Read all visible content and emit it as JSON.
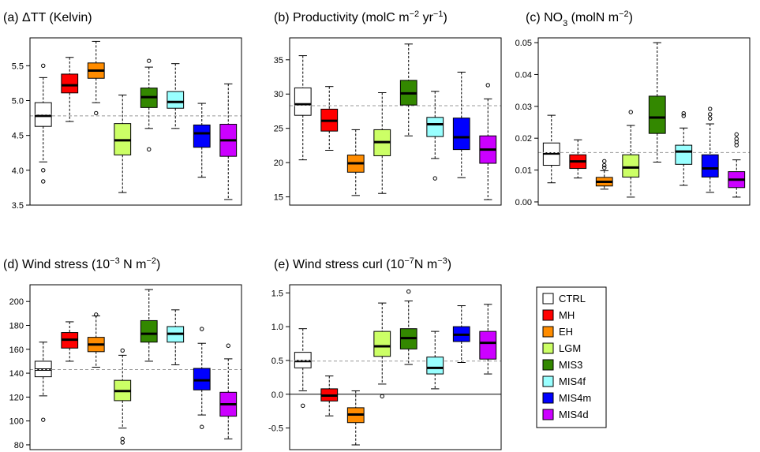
{
  "series_colors": {
    "CTRL": "#FFFFFF",
    "MH": "#FF0000",
    "EH": "#FF8C00",
    "LGM": "#CCFF66",
    "MIS3": "#338800",
    "MIS4f": "#99FFFF",
    "MIS4m": "#0000FF",
    "MIS4d": "#CC00FF"
  },
  "legend": {
    "position": "right",
    "entries": [
      "CTRL",
      "MH",
      "EH",
      "LGM",
      "MIS3",
      "MIS4f",
      "MIS4m",
      "MIS4d"
    ]
  },
  "chart_data": [
    {
      "id": "a",
      "type": "boxplot",
      "title": {
        "label": "(a) ",
        "text": "ΔTT (Kelvin)"
      },
      "ylim": [
        3.5,
        5.9
      ],
      "yticks": [
        3.5,
        4.0,
        4.5,
        5.0,
        5.5
      ],
      "ytick_labels": [
        "3.5",
        "4.0",
        "4.5",
        "5.0",
        "5.5"
      ],
      "reference_line": 4.78,
      "zero_line": null,
      "categories": [
        "CTRL",
        "MH",
        "EH",
        "LGM",
        "MIS3",
        "MIS4f",
        "MIS4m",
        "MIS4d"
      ],
      "boxes": [
        {
          "min": 4.12,
          "q1": 4.63,
          "median": 4.78,
          "mean": 4.8,
          "q3": 4.97,
          "max": 5.33,
          "outliers": [
            5.5,
            4.0,
            3.84
          ]
        },
        {
          "min": 4.7,
          "q1": 5.11,
          "median": 5.22,
          "mean": null,
          "q3": 5.38,
          "max": 5.62,
          "outliers": []
        },
        {
          "min": 4.97,
          "q1": 5.32,
          "median": 5.43,
          "mean": null,
          "q3": 5.54,
          "max": 5.85,
          "outliers": [
            4.82
          ]
        },
        {
          "min": 3.68,
          "q1": 4.22,
          "median": 4.43,
          "mean": null,
          "q3": 4.67,
          "max": 5.08,
          "outliers": []
        },
        {
          "min": 4.6,
          "q1": 4.9,
          "median": 5.05,
          "mean": null,
          "q3": 5.18,
          "max": 5.48,
          "outliers": [
            5.57,
            4.3
          ]
        },
        {
          "min": 4.6,
          "q1": 4.89,
          "median": 4.98,
          "mean": null,
          "q3": 5.13,
          "max": 5.53,
          "outliers": []
        },
        {
          "min": 3.9,
          "q1": 4.33,
          "median": 4.53,
          "mean": null,
          "q3": 4.65,
          "max": 4.96,
          "outliers": []
        },
        {
          "min": 3.58,
          "q1": 4.2,
          "median": 4.43,
          "mean": null,
          "q3": 4.66,
          "max": 5.24,
          "outliers": []
        }
      ]
    },
    {
      "id": "b",
      "type": "boxplot",
      "title": {
        "label": "(b) ",
        "text": "Productivity (molC m",
        "sup1": "−2",
        "mid": " yr",
        "sup2": "−1",
        "end": ")"
      },
      "ylim": [
        13.8,
        38.2
      ],
      "yticks": [
        15,
        20,
        25,
        30,
        35
      ],
      "ytick_labels": [
        "15",
        "20",
        "25",
        "30",
        "35"
      ],
      "reference_line": 28.3,
      "zero_line": null,
      "categories": [
        "CTRL",
        "MH",
        "EH",
        "LGM",
        "MIS3",
        "MIS4f",
        "MIS4m",
        "MIS4d"
      ],
      "boxes": [
        {
          "min": 20.4,
          "q1": 26.9,
          "median": 28.5,
          "mean": 28.3,
          "q3": 30.9,
          "max": 35.6,
          "outliers": []
        },
        {
          "min": 21.8,
          "q1": 24.6,
          "median": 26.1,
          "mean": null,
          "q3": 27.8,
          "max": 31.1,
          "outliers": []
        },
        {
          "min": 15.2,
          "q1": 18.6,
          "median": 19.9,
          "mean": null,
          "q3": 21.1,
          "max": 24.8,
          "outliers": []
        },
        {
          "min": 15.5,
          "q1": 21.0,
          "median": 23.0,
          "mean": null,
          "q3": 24.8,
          "max": 30.2,
          "outliers": []
        },
        {
          "min": 23.9,
          "q1": 28.4,
          "median": 30.1,
          "mean": null,
          "q3": 32.0,
          "max": 37.3,
          "outliers": []
        },
        {
          "min": 20.6,
          "q1": 23.8,
          "median": 25.6,
          "mean": null,
          "q3": 26.6,
          "max": 30.4,
          "outliers": [
            17.7
          ]
        },
        {
          "min": 17.8,
          "q1": 21.9,
          "median": 23.7,
          "mean": null,
          "q3": 26.5,
          "max": 33.2,
          "outliers": []
        },
        {
          "min": 14.6,
          "q1": 19.9,
          "median": 21.9,
          "mean": null,
          "q3": 23.9,
          "max": 29.3,
          "outliers": [
            31.3
          ]
        }
      ]
    },
    {
      "id": "c",
      "type": "boxplot",
      "title": {
        "label": "(c) ",
        "text": "NO",
        "sub": "3",
        "end": " (molN m",
        "sup1": "−2",
        "end2": ")"
      },
      "ylim": [
        -0.001,
        0.0515
      ],
      "yticks": [
        0.0,
        0.01,
        0.02,
        0.03,
        0.04,
        0.05
      ],
      "ytick_labels": [
        "0.00",
        "0.01",
        "0.02",
        "0.03",
        "0.04",
        "0.05"
      ],
      "reference_line": 0.0155,
      "zero_line": null,
      "categories": [
        "CTRL",
        "MH",
        "EH",
        "LGM",
        "MIS3",
        "MIS4f",
        "MIS4m",
        "MIS4d"
      ],
      "boxes": [
        {
          "min": 0.006,
          "q1": 0.0115,
          "median": 0.0152,
          "mean": 0.0155,
          "q3": 0.0185,
          "max": 0.0272,
          "outliers": []
        },
        {
          "min": 0.0075,
          "q1": 0.0105,
          "median": 0.0127,
          "mean": null,
          "q3": 0.0148,
          "max": 0.0195,
          "outliers": []
        },
        {
          "min": 0.004,
          "q1": 0.005,
          "median": 0.0063,
          "mean": null,
          "q3": 0.0077,
          "max": 0.0098,
          "outliers": [
            0.0107,
            0.0115,
            0.0128
          ]
        },
        {
          "min": 0.0015,
          "q1": 0.0078,
          "median": 0.0108,
          "mean": null,
          "q3": 0.0148,
          "max": 0.024,
          "outliers": [
            0.0282
          ]
        },
        {
          "min": 0.0125,
          "q1": 0.0215,
          "median": 0.0265,
          "mean": null,
          "q3": 0.0332,
          "max": 0.05,
          "outliers": []
        },
        {
          "min": 0.0052,
          "q1": 0.0118,
          "median": 0.0158,
          "mean": null,
          "q3": 0.0178,
          "max": 0.0232,
          "outliers": [
            0.027,
            0.0278
          ]
        },
        {
          "min": 0.003,
          "q1": 0.0078,
          "median": 0.0105,
          "mean": null,
          "q3": 0.0148,
          "max": 0.0245,
          "outliers": [
            0.0262,
            0.0275,
            0.0292
          ]
        },
        {
          "min": 0.0015,
          "q1": 0.0045,
          "median": 0.007,
          "mean": null,
          "q3": 0.0095,
          "max": 0.0132,
          "outliers": [
            0.0178,
            0.0188,
            0.0198,
            0.0212
          ]
        }
      ]
    },
    {
      "id": "d",
      "type": "boxplot",
      "title": {
        "label": "(d) ",
        "text": "Wind stress (10",
        "sup1": "−3",
        "mid": " N m",
        "sup2": "−2",
        "end": ")"
      },
      "ylim": [
        76,
        214
      ],
      "yticks": [
        80,
        100,
        120,
        140,
        160,
        180,
        200
      ],
      "ytick_labels": [
        "80",
        "100",
        "120",
        "140",
        "160",
        "180",
        "200"
      ],
      "reference_line": 143,
      "zero_line": null,
      "categories": [
        "CTRL",
        "MH",
        "EH",
        "LGM",
        "MIS3",
        "MIS4f",
        "MIS4m",
        "MIS4d"
      ],
      "boxes": [
        {
          "min": 121,
          "q1": 137,
          "median": 143,
          "mean": 143,
          "q3": 150,
          "max": 166,
          "outliers": [
            101
          ]
        },
        {
          "min": 150,
          "q1": 161,
          "median": 168,
          "mean": null,
          "q3": 174,
          "max": 183,
          "outliers": []
        },
        {
          "min": 145,
          "q1": 158,
          "median": 164,
          "mean": null,
          "q3": 170,
          "max": 188,
          "outliers": [
            189
          ]
        },
        {
          "min": 94,
          "q1": 117,
          "median": 125,
          "mean": null,
          "q3": 134,
          "max": 155,
          "outliers": [
            159,
            85,
            82
          ]
        },
        {
          "min": 150,
          "q1": 166,
          "median": 173,
          "mean": null,
          "q3": 184,
          "max": 210,
          "outliers": []
        },
        {
          "min": 147,
          "q1": 166,
          "median": 173,
          "mean": null,
          "q3": 179,
          "max": 193,
          "outliers": []
        },
        {
          "min": 105,
          "q1": 126,
          "median": 134,
          "mean": null,
          "q3": 144,
          "max": 165,
          "outliers": [
            177,
            95
          ]
        },
        {
          "min": 85,
          "q1": 104,
          "median": 114,
          "mean": null,
          "q3": 124,
          "max": 152,
          "outliers": [
            163
          ]
        }
      ]
    },
    {
      "id": "e",
      "type": "boxplot",
      "title": {
        "label": "(e) ",
        "text": "Wind stress curl (10",
        "sup1": "−7",
        "mid": "N m",
        "sup2": "−3",
        "end": ")"
      },
      "ylim": [
        -0.82,
        1.62
      ],
      "yticks": [
        -0.5,
        0.0,
        0.5,
        1.0,
        1.5
      ],
      "ytick_labels": [
        "-0.5",
        "0.0",
        "0.5",
        "1.0",
        "1.5"
      ],
      "reference_line": 0.49,
      "zero_line": 0.0,
      "categories": [
        "CTRL",
        "MH",
        "EH",
        "LGM",
        "MIS3",
        "MIS4f",
        "MIS4m",
        "MIS4d"
      ],
      "boxes": [
        {
          "min": 0.05,
          "q1": 0.39,
          "median": 0.49,
          "mean": 0.5,
          "q3": 0.62,
          "max": 0.97,
          "outliers": [
            -0.17
          ]
        },
        {
          "min": -0.32,
          "q1": -0.1,
          "median": -0.02,
          "mean": null,
          "q3": 0.08,
          "max": 0.27,
          "outliers": []
        },
        {
          "min": -0.75,
          "q1": -0.42,
          "median": -0.3,
          "mean": null,
          "q3": -0.2,
          "max": 0.05,
          "outliers": []
        },
        {
          "min": 0.15,
          "q1": 0.56,
          "median": 0.71,
          "mean": null,
          "q3": 0.93,
          "max": 1.35,
          "outliers": [
            -0.03
          ]
        },
        {
          "min": 0.44,
          "q1": 0.67,
          "median": 0.83,
          "mean": null,
          "q3": 0.97,
          "max": 1.38,
          "outliers": [
            1.52
          ]
        },
        {
          "min": 0.08,
          "q1": 0.3,
          "median": 0.39,
          "mean": null,
          "q3": 0.55,
          "max": 0.93,
          "outliers": []
        },
        {
          "min": 0.47,
          "q1": 0.78,
          "median": 0.88,
          "mean": null,
          "q3": 1.0,
          "max": 1.31,
          "outliers": []
        },
        {
          "min": 0.3,
          "q1": 0.52,
          "median": 0.76,
          "mean": null,
          "q3": 0.93,
          "max": 1.33,
          "outliers": []
        }
      ]
    }
  ]
}
